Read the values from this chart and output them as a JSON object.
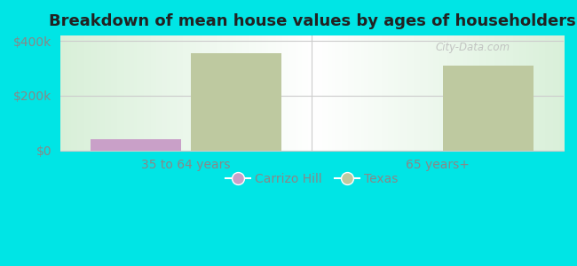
{
  "title": "Breakdown of mean house values by ages of householders",
  "categories": [
    "35 to 64 years",
    "65 years+"
  ],
  "carrizo_hill": [
    40000,
    0
  ],
  "texas": [
    355000,
    310000
  ],
  "carrizo_color": "#c9a0c8",
  "texas_color": "#bec9a0",
  "background_color": "#00e5e5",
  "ylim": [
    0,
    420000
  ],
  "yticks": [
    0,
    200000,
    400000
  ],
  "ytick_labels": [
    "$0",
    "$200k",
    "$400k"
  ],
  "bar_width": 0.18,
  "group_positions": [
    0.25,
    0.75
  ],
  "legend_labels": [
    "Carrizo Hill",
    "Texas"
  ],
  "title_fontsize": 13,
  "tick_color": "#888888",
  "grid_color": "#cccccc",
  "xlim": [
    0.0,
    1.0
  ]
}
